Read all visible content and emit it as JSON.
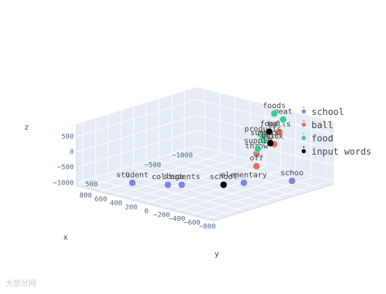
{
  "chart_data": {
    "type": "scatter",
    "dimensions": 3,
    "axes": {
      "x": {
        "label": "x",
        "ticks": [
          "800",
          "600",
          "400",
          "200",
          "0",
          "−200",
          "−400",
          "−600",
          "−800"
        ],
        "shown_ticks": [
          "500",
          "0",
          "−500",
          "−1000"
        ]
      },
      "y": {
        "label": "y",
        "shown_ticks": [
          "800",
          "600",
          "400",
          "200",
          "0",
          "−200",
          "−400",
          "−600",
          "−800"
        ]
      },
      "z": {
        "label": "z",
        "shown_ticks": [
          "500",
          "0",
          "−500",
          "−1000"
        ]
      }
    },
    "legend_position": "right",
    "series": [
      {
        "name": "school",
        "color": "#7b86ec",
        "points": [
          {
            "label": "schoo",
            "x": -700,
            "y": -600,
            "z": -1000
          },
          {
            "label": "elementary",
            "x": -300,
            "y": -300,
            "z": -1000
          },
          {
            "label": "students",
            "x": 200,
            "y": 100,
            "z": -1000
          },
          {
            "label": "college",
            "x": 300,
            "y": 200,
            "z": -1000
          },
          {
            "label": "student",
            "x": 500,
            "y": 500,
            "z": -1000
          }
        ]
      },
      {
        "name": "ball",
        "color": "#e8705b",
        "points": [
          {
            "label": "pitch",
            "x": -100,
            "y": -800,
            "z": 800
          },
          {
            "label": "balls",
            "x": -500,
            "y": -600,
            "z": 700
          },
          {
            "label": "kick",
            "x": -300,
            "y": -700,
            "z": 500
          },
          {
            "label": "throw",
            "x": 100,
            "y": -800,
            "z": 500
          },
          {
            "label": "off",
            "x": 100,
            "y": -800,
            "z": 100
          }
        ]
      },
      {
        "name": "food",
        "color": "#3ec99a",
        "points": [
          {
            "label": "meat",
            "x": -800,
            "y": -400,
            "z": 800
          },
          {
            "label": "foods",
            "x": -900,
            "y": -200,
            "z": 800
          },
          {
            "label": "suppli",
            "x": -500,
            "y": -400,
            "z": 300
          },
          {
            "label": "products",
            "x": -600,
            "y": -300,
            "z": 300
          },
          {
            "label": "supply",
            "x": -400,
            "y": -400,
            "z": 100
          }
        ]
      },
      {
        "name": "input words",
        "color": "#000000",
        "points": [
          {
            "label": "ball",
            "x": -300,
            "y": -650,
            "z": 500
          },
          {
            "label": "food",
            "x": -700,
            "y": -300,
            "z": 400
          },
          {
            "label": "school",
            "x": -100,
            "y": -200,
            "z": -1000
          }
        ]
      }
    ]
  },
  "watermark": "大部分网"
}
